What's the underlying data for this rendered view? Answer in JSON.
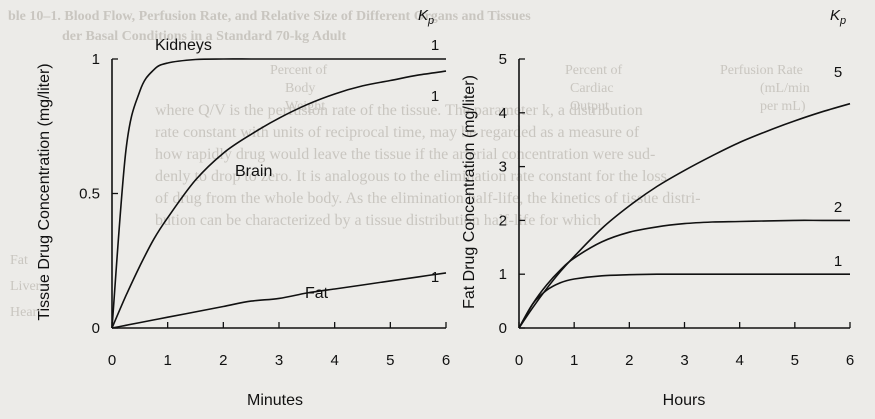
{
  "background_text": [
    "ble 10–1. Blood Flow, Perfusion Rate, and Relative Size of Different Organs and Tissues",
    "der Basal Conditions in a Standard 70-kg Adult",
    "Percent of",
    "Percent of",
    "Perfusion Rate",
    "Body",
    "Cardiac",
    "(mL/min",
    "Weight",
    "Output",
    "per mL)",
    "where Q/V is the perfusion rate of the tissue. The parameter k, a distribution",
    "rate constant with units of reciprocal time, may be regarded as a measure of",
    "how rapidly drug would leave the tissue if the arterial concentration were sud-",
    "denly to drop to zero. It is analogous to the elimination rate constant for the loss",
    "of drug from the whole body. As the elimination half-life, the kinetics of tissue distri-",
    "bution can be characterized by a tissue distribution half-life for which",
    "Fat",
    "Liver",
    "Heart"
  ],
  "chart_data": [
    {
      "type": "line",
      "panel": "left",
      "xlabel": "Minutes",
      "ylabel": "Tissue Drug Concentration (mg/liter)",
      "xlim": [
        0,
        6
      ],
      "ylim": [
        0,
        1
      ],
      "x_ticks": [
        0,
        1,
        2,
        3,
        4,
        5,
        6
      ],
      "y_ticks": [
        0,
        0.5,
        1
      ],
      "y_tick_labels": [
        "0",
        "0.5",
        "1"
      ],
      "legend_title": "Kp",
      "x": [
        0,
        0.25,
        0.5,
        0.75,
        1,
        1.5,
        2,
        2.5,
        3,
        3.5,
        4,
        4.5,
        5,
        5.5,
        6
      ],
      "series": [
        {
          "name": "Kidneys",
          "kp": "1",
          "values": [
            0,
            0.66,
            0.88,
            0.96,
            0.985,
            0.998,
            1,
            1,
            1,
            1,
            1,
            1,
            1,
            1,
            1
          ]
        },
        {
          "name": "Brain",
          "kp": "1",
          "values": [
            0,
            0.12,
            0.23,
            0.33,
            0.41,
            0.55,
            0.65,
            0.72,
            0.78,
            0.83,
            0.87,
            0.9,
            0.92,
            0.94,
            0.955
          ]
        },
        {
          "name": "Fat",
          "kp": "1",
          "values": [
            0,
            0.01,
            0.02,
            0.03,
            0.04,
            0.06,
            0.08,
            0.1,
            0.11,
            0.13,
            0.145,
            0.16,
            0.175,
            0.19,
            0.205
          ]
        }
      ]
    },
    {
      "type": "line",
      "panel": "right",
      "xlabel": "Hours",
      "ylabel": "Fat Drug Concentration (mg/liter)",
      "xlim": [
        0,
        6
      ],
      "ylim": [
        0,
        5
      ],
      "x_ticks": [
        0,
        1,
        2,
        3,
        4,
        5,
        6
      ],
      "y_ticks": [
        0,
        1,
        2,
        3,
        4,
        5
      ],
      "y_tick_labels": [
        "0",
        "1",
        "2",
        "3",
        "4",
        "5"
      ],
      "legend_title": "Kp",
      "x": [
        0,
        0.25,
        0.5,
        0.75,
        1,
        1.5,
        2,
        2.5,
        3,
        3.5,
        4,
        4.5,
        5,
        5.5,
        6
      ],
      "series": [
        {
          "name": "",
          "kp": "5",
          "values": [
            0,
            0.38,
            0.73,
            1.05,
            1.33,
            1.85,
            2.27,
            2.63,
            2.93,
            3.2,
            3.45,
            3.66,
            3.85,
            4.02,
            4.17
          ]
        },
        {
          "name": "",
          "kp": "2",
          "values": [
            0,
            0.45,
            0.8,
            1.08,
            1.3,
            1.6,
            1.78,
            1.88,
            1.94,
            1.97,
            1.98,
            1.99,
            2,
            2,
            2
          ]
        },
        {
          "name": "",
          "kp": "1",
          "values": [
            0,
            0.45,
            0.7,
            0.84,
            0.91,
            0.97,
            0.99,
            1,
            1,
            1,
            1,
            1,
            1,
            1,
            1
          ]
        }
      ]
    }
  ]
}
